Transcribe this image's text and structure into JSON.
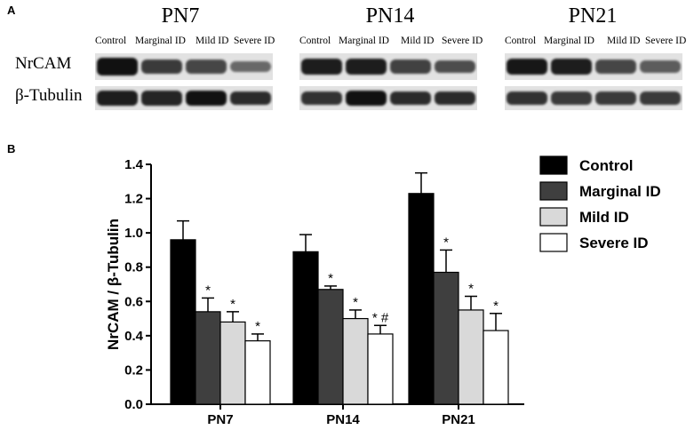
{
  "panel_a": {
    "letter": "A",
    "groups": [
      {
        "title": "PN7",
        "lanes": [
          "Control",
          "Marginal ID",
          "Mild ID",
          "Severe ID"
        ],
        "nrcam_intensity": [
          1.0,
          0.7,
          0.6,
          0.35
        ],
        "tubulin_intensity": [
          0.9,
          0.85,
          1.0,
          0.8
        ]
      },
      {
        "title": "PN14",
        "lanes": [
          "Control",
          "Marginal ID",
          "Mild ID",
          "Severe ID"
        ],
        "nrcam_intensity": [
          0.9,
          0.9,
          0.65,
          0.55
        ],
        "tubulin_intensity": [
          0.75,
          1.0,
          0.8,
          0.8
        ]
      },
      {
        "title": "PN21",
        "lanes": [
          "Control",
          "Marginal ID",
          "Mild ID",
          "Severe ID"
        ],
        "nrcam_intensity": [
          0.95,
          0.9,
          0.6,
          0.45
        ],
        "tubulin_intensity": [
          0.75,
          0.7,
          0.7,
          0.7
        ]
      }
    ],
    "rows": [
      "NrCAM",
      "β-Tubulin"
    ]
  },
  "chart_data": {
    "panel_letter": "B",
    "type": "bar",
    "categories": [
      "PN7",
      "PN14",
      "PN21"
    ],
    "ylabel": "NrCAM / β-Tubulin",
    "xlabel": "",
    "ylim": [
      0,
      1.4
    ],
    "yticks": [
      "0.0",
      "0.2",
      "0.4",
      "0.6",
      "0.8",
      "1.0",
      "1.2",
      "1.4"
    ],
    "legend_position": "right",
    "grid": false,
    "series": [
      {
        "name": "Control",
        "color": "#000000",
        "values": [
          0.96,
          0.89,
          1.23
        ],
        "errors": [
          0.11,
          0.1,
          0.12
        ],
        "annotations": [
          "",
          "",
          ""
        ]
      },
      {
        "name": "Marginal ID",
        "color": "#3f3f3f",
        "values": [
          0.54,
          0.67,
          0.77
        ],
        "errors": [
          0.08,
          0.02,
          0.13
        ],
        "annotations": [
          "*",
          "*",
          "*"
        ]
      },
      {
        "name": "Mild ID",
        "color": "#d9d9d9",
        "values": [
          0.48,
          0.5,
          0.55
        ],
        "errors": [
          0.06,
          0.05,
          0.08
        ],
        "annotations": [
          "*",
          "*",
          "*"
        ]
      },
      {
        "name": "Severe ID",
        "color": "#ffffff",
        "values": [
          0.37,
          0.41,
          0.43
        ],
        "errors": [
          0.04,
          0.05,
          0.1
        ],
        "annotations": [
          "*",
          "* #",
          "*"
        ]
      }
    ]
  }
}
